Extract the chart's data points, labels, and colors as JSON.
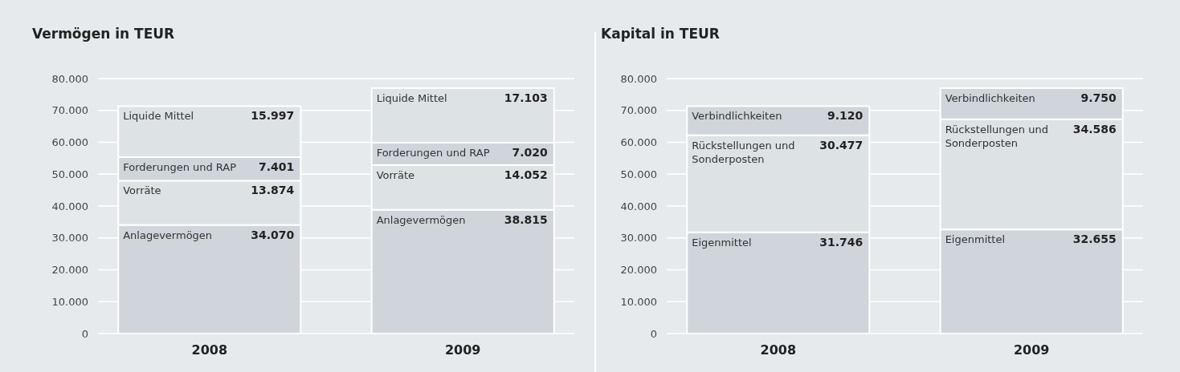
{
  "chart_data": [
    {
      "type": "bar",
      "title": "Vermögen in TEUR",
      "stacked": true,
      "grid": "y",
      "categories": [
        "2008",
        "2009"
      ],
      "ylim": [
        0,
        80000
      ],
      "yticks": [
        {
          "value": 0,
          "label": "0"
        },
        {
          "value": 10000,
          "label": "10.000"
        },
        {
          "value": 20000,
          "label": "20.000"
        },
        {
          "value": 30000,
          "label": "30.000"
        },
        {
          "value": 40000,
          "label": "40.000"
        },
        {
          "value": 50000,
          "label": "50.000"
        },
        {
          "value": 60000,
          "label": "60.000"
        },
        {
          "value": 70000,
          "label": "70.000"
        },
        {
          "value": 80000,
          "label": "80.000"
        }
      ],
      "series": [
        {
          "name": "Anlagevermögen",
          "color": "#d0d5db",
          "values": [
            34070,
            38815
          ],
          "value_labels": [
            "34.070",
            "38.815"
          ]
        },
        {
          "name": "Vorräte",
          "color": "#dde2e5",
          "values": [
            13874,
            14052
          ],
          "value_labels": [
            "13.874",
            "14.052"
          ]
        },
        {
          "name": "Forderungen und RAP",
          "color": "#d0d5db",
          "values": [
            7401,
            7020
          ],
          "value_labels": [
            "7.401",
            "7.020"
          ]
        },
        {
          "name": "Liquide Mittel",
          "color": "#dde2e5",
          "values": [
            15997,
            17103
          ],
          "value_labels": [
            "15.997",
            "17.103"
          ]
        }
      ]
    },
    {
      "type": "bar",
      "title": "Kapital in TEUR",
      "stacked": true,
      "grid": "y",
      "categories": [
        "2008",
        "2009"
      ],
      "ylim": [
        0,
        80000
      ],
      "yticks": [
        {
          "value": 0,
          "label": "0"
        },
        {
          "value": 10000,
          "label": "10.000"
        },
        {
          "value": 20000,
          "label": "20.000"
        },
        {
          "value": 30000,
          "label": "30.000"
        },
        {
          "value": 40000,
          "label": "40.000"
        },
        {
          "value": 50000,
          "label": "50.000"
        },
        {
          "value": 60000,
          "label": "60.000"
        },
        {
          "value": 70000,
          "label": "70.000"
        },
        {
          "value": 80000,
          "label": "80.000"
        }
      ],
      "series": [
        {
          "name": "Eigenmittel",
          "color": "#d0d5db",
          "values": [
            31746,
            32655
          ],
          "value_labels": [
            "31.746",
            "32.655"
          ]
        },
        {
          "name": "Rückstellungen und Sonderposten",
          "color": "#dde2e5",
          "values": [
            30477,
            34586
          ],
          "value_labels": [
            "30.477",
            "34.586"
          ]
        },
        {
          "name": "Verbindlichkeiten",
          "color": "#d0d5db",
          "values": [
            9120,
            9750
          ],
          "value_labels": [
            "9.120",
            "9.750"
          ]
        }
      ]
    }
  ]
}
